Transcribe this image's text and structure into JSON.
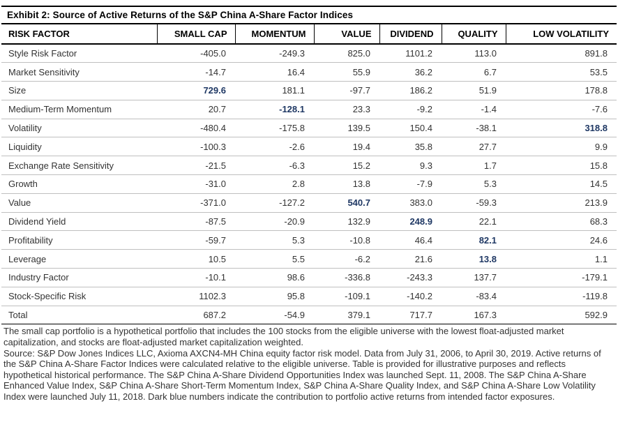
{
  "exhibit": {
    "title": "Exhibit 2: Source of Active Returns of the S&P China A-Share Factor Indices"
  },
  "table": {
    "columns": [
      "RISK FACTOR",
      "SMALL CAP",
      "MOMENTUM",
      "VALUE",
      "DIVIDEND",
      "QUALITY",
      "LOW VOLATILITY"
    ],
    "rows": [
      {
        "label": "Style Risk Factor",
        "values": [
          "-405.0",
          "-249.3",
          "825.0",
          "1101.2",
          "113.0",
          "891.8"
        ],
        "highlight_col": null
      },
      {
        "label": "Market Sensitivity",
        "values": [
          "-14.7",
          "16.4",
          "55.9",
          "36.2",
          "6.7",
          "53.5"
        ],
        "highlight_col": null
      },
      {
        "label": "Size",
        "values": [
          "729.6",
          "181.1",
          "-97.7",
          "186.2",
          "51.9",
          "178.8"
        ],
        "highlight_col": 0
      },
      {
        "label": "Medium-Term Momentum",
        "values": [
          "20.7",
          "-128.1",
          "23.3",
          "-9.2",
          "-1.4",
          "-7.6"
        ],
        "highlight_col": 1
      },
      {
        "label": "Volatility",
        "values": [
          "-480.4",
          "-175.8",
          "139.5",
          "150.4",
          "-38.1",
          "318.8"
        ],
        "highlight_col": 5
      },
      {
        "label": "Liquidity",
        "values": [
          "-100.3",
          "-2.6",
          "19.4",
          "35.8",
          "27.7",
          "9.9"
        ],
        "highlight_col": null
      },
      {
        "label": "Exchange Rate Sensitivity",
        "values": [
          "-21.5",
          "-6.3",
          "15.2",
          "9.3",
          "1.7",
          "15.8"
        ],
        "highlight_col": null
      },
      {
        "label": "Growth",
        "values": [
          "-31.0",
          "2.8",
          "13.8",
          "-7.9",
          "5.3",
          "14.5"
        ],
        "highlight_col": null
      },
      {
        "label": "Value",
        "values": [
          "-371.0",
          "-127.2",
          "540.7",
          "383.0",
          "-59.3",
          "213.9"
        ],
        "highlight_col": 2
      },
      {
        "label": "Dividend Yield",
        "values": [
          "-87.5",
          "-20.9",
          "132.9",
          "248.9",
          "22.1",
          "68.3"
        ],
        "highlight_col": 3
      },
      {
        "label": "Profitability",
        "values": [
          "-59.7",
          "5.3",
          "-10.8",
          "46.4",
          "82.1",
          "24.6"
        ],
        "highlight_col": 4
      },
      {
        "label": "Leverage",
        "values": [
          "10.5",
          "5.5",
          "-6.2",
          "21.6",
          "13.8",
          "1.1"
        ],
        "highlight_col": 4
      },
      {
        "label": "Industry Factor",
        "values": [
          "-10.1",
          "98.6",
          "-336.8",
          "-243.3",
          "137.7",
          "-179.1"
        ],
        "highlight_col": null
      },
      {
        "label": "Stock-Specific Risk",
        "values": [
          "1102.3",
          "95.8",
          "-109.1",
          "-140.2",
          "-83.4",
          "-119.8"
        ],
        "highlight_col": null
      },
      {
        "label": "Total",
        "values": [
          "687.2",
          "-54.9",
          "379.1",
          "717.7",
          "167.3",
          "592.9"
        ],
        "highlight_col": null
      }
    ]
  },
  "colors": {
    "highlight_blue": "#1f3864",
    "row_divider": "#bfbfbf"
  },
  "footnotes": {
    "note": "The small cap portfolio is a hypothetical portfolio that includes the 100 stocks from the eligible universe with the lowest float-adjusted market capitalization, and stocks are float-adjusted market capitalization weighted.",
    "source": "Source: S&P Dow Jones Indices LLC, Axioma AXCN4-MH China equity factor risk model. Data from July 31, 2006, to April 30, 2019. Active returns of the S&P China A-Share Factor Indices were calculated relative to the eligible universe. Table is provided for illustrative purposes and reflects hypothetical historical performance. The S&P China A-Share Dividend Opportunities Index was launched Sept. 11, 2008. The S&P China A-Share Enhanced Value Index, S&P China A-Share Short-Term Momentum Index, S&P China A-Share Quality Index, and S&P China A-Share Low Volatility Index were launched July 11, 2018.  Dark blue numbers indicate the contribution to portfolio active returns from intended factor exposures."
  }
}
